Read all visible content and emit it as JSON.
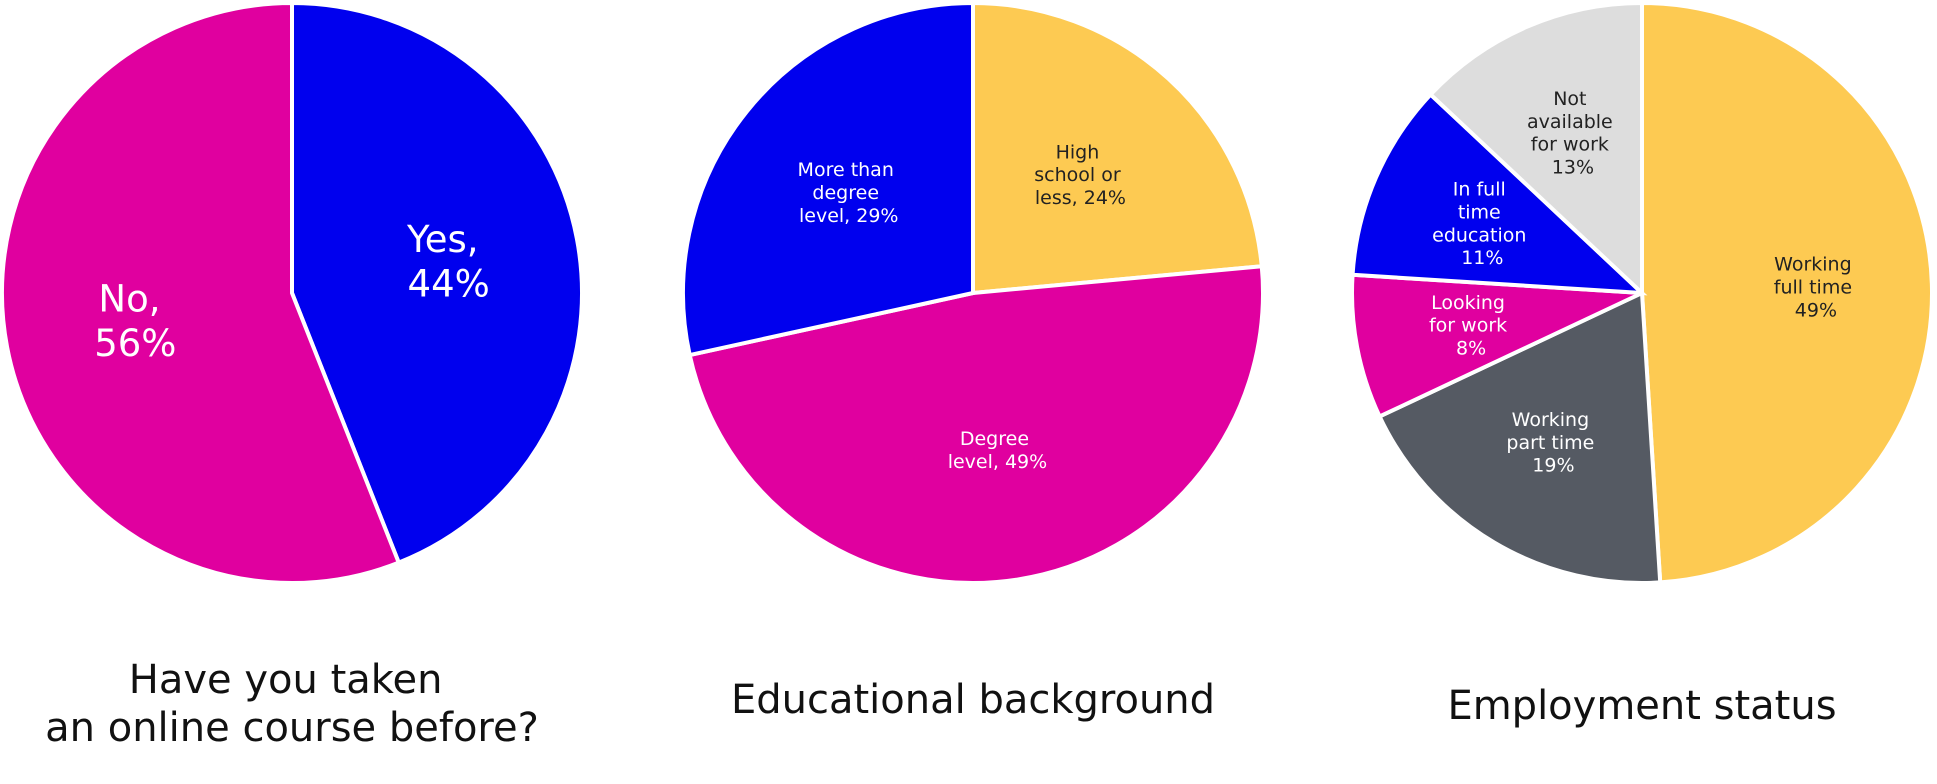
{
  "chart_data": [
    {
      "type": "pie",
      "title": "Have you taken an online course before?",
      "values": [
        44,
        56
      ],
      "value_labels": [
        "Yes, 44%",
        "No, 56%"
      ],
      "colors": [
        "#0000ee",
        "#e0009f"
      ]
    },
    {
      "type": "pie",
      "title": "Educational background",
      "values": [
        24,
        49,
        29
      ],
      "value_labels": [
        "High school or less, 24%",
        "Degree level, 49%",
        "More than degree level, 29%"
      ],
      "colors": [
        "#fdca52",
        "#e0009f",
        "#0000ee"
      ]
    },
    {
      "type": "pie",
      "title": "Employment status",
      "values": [
        49,
        19,
        8,
        11,
        13
      ],
      "value_labels": [
        "Working full time 49%",
        "Working part time 19%",
        "Looking for work 8%",
        "In full time education 11%",
        "Not available for work 13%"
      ],
      "colors": [
        "#fdca52",
        "#555a63",
        "#e0009f",
        "#0000ee",
        "#dddddd"
      ]
    }
  ]
}
